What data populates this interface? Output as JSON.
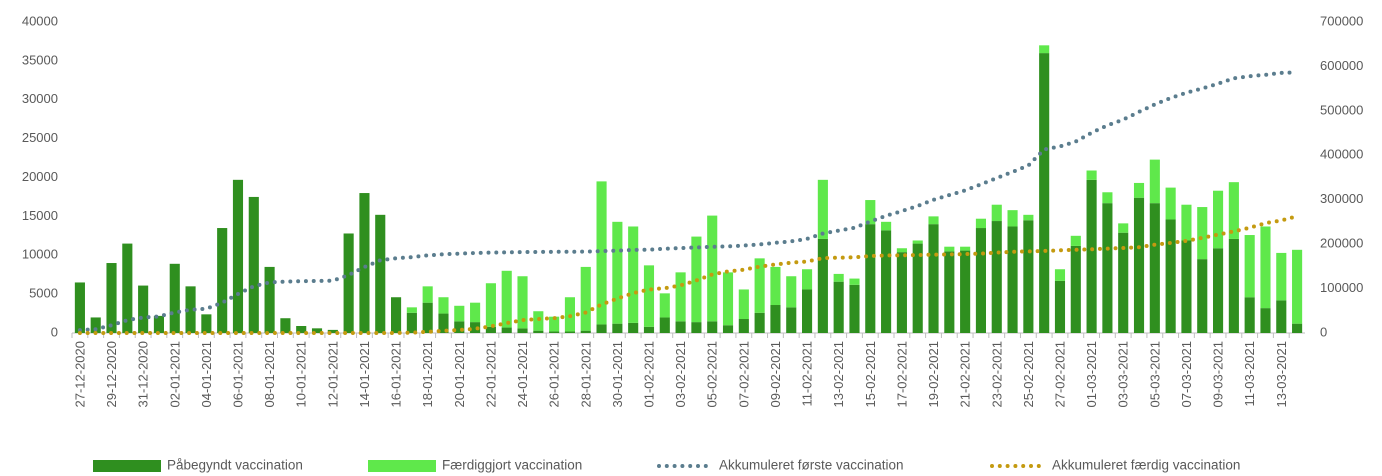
{
  "chart_data": {
    "type": "bar",
    "stacked": true,
    "categories": [
      "27-12-2020",
      null,
      "29-12-2020",
      null,
      "31-12-2020",
      null,
      "02-01-2021",
      null,
      "04-01-2021",
      null,
      "06-01-2021",
      null,
      "08-01-2021",
      null,
      "10-01-2021",
      null,
      "12-01-2021",
      null,
      "14-01-2021",
      null,
      "16-01-2021",
      null,
      "18-01-2021",
      null,
      "20-01-2021",
      null,
      "22-01-2021",
      null,
      "24-01-2021",
      null,
      "26-01-2021",
      null,
      "28-01-2021",
      null,
      "30-01-2021",
      null,
      "01-02-2021",
      null,
      "03-02-2021",
      null,
      "05-02-2021",
      null,
      "07-02-2021",
      null,
      "09-02-2021",
      null,
      "11-02-2021",
      null,
      "13-02-2021",
      null,
      "15-02-2021",
      null,
      "17-02-2021",
      null,
      "19-02-2021",
      null,
      "21-02-2021",
      null,
      "23-02-2021",
      null,
      "25-02-2021",
      null,
      "27-02-2021",
      null,
      "01-03-2021",
      null,
      "03-03-2021",
      null,
      "05-03-2021",
      null,
      "07-03-2021",
      null,
      "09-03-2021",
      null,
      "11-03-2021",
      null,
      "13-03-2021",
      null
    ],
    "series": [
      {
        "name": "Påbegyndt vaccination",
        "type": "bar",
        "color": "#2f8f1f",
        "values": [
          6500,
          2000,
          9000,
          11500,
          6100,
          2200,
          8900,
          6000,
          2400,
          13500,
          19700,
          17500,
          8500,
          1900,
          900,
          600,
          400,
          12800,
          18000,
          15200,
          4600,
          2600,
          3900,
          2500,
          1500,
          1400,
          800,
          700,
          600,
          300,
          200,
          200,
          300,
          1100,
          1200,
          1300,
          800,
          2000,
          1500,
          1400,
          1500,
          1000,
          1800,
          2600,
          3600,
          3300,
          5600,
          12100,
          6600,
          6200,
          14000,
          13200,
          10400,
          11500,
          14000,
          10500,
          10600,
          13500,
          14400,
          13700,
          14500,
          36000,
          6700,
          11200,
          19700,
          16700,
          12900,
          17400,
          16700,
          14600,
          11900,
          9500,
          10900,
          12100,
          4600,
          3200,
          4200,
          1200
        ]
      },
      {
        "name": "Færdiggjort vaccination",
        "type": "bar",
        "color": "#5fe84b",
        "values": [
          0,
          0,
          0,
          0,
          0,
          0,
          0,
          0,
          0,
          0,
          0,
          0,
          0,
          0,
          0,
          0,
          0,
          0,
          0,
          0,
          0,
          700,
          2100,
          2100,
          2000,
          2500,
          5600,
          7300,
          6700,
          2500,
          1900,
          4400,
          8200,
          18400,
          13100,
          12400,
          7900,
          3100,
          6300,
          11000,
          13600,
          6800,
          3800,
          7000,
          4900,
          4000,
          2600,
          7600,
          1000,
          800,
          3100,
          1100,
          500,
          400,
          1000,
          600,
          500,
          1200,
          2100,
          2100,
          700,
          1000,
          1500,
          1300,
          1200,
          1400,
          1200,
          1900,
          5600,
          4100,
          4600,
          6700,
          7400,
          7300,
          8000,
          10500,
          6100,
          9500
        ]
      },
      {
        "name": "Akkumuleret første vaccination",
        "type": "line",
        "axis": "y2",
        "color": "#5b7d8e",
        "values": [
          6500,
          8500,
          17500,
          29000,
          35100,
          37300,
          46200,
          52200,
          54600,
          68100,
          87800,
          105300,
          113800,
          115700,
          116600,
          117200,
          117600,
          130400,
          148400,
          163600,
          168200,
          170800,
          174700,
          177200,
          178700,
          180100,
          180900,
          181600,
          182200,
          182500,
          182700,
          182900,
          183200,
          184300,
          185500,
          186800,
          187600,
          189600,
          191100,
          192500,
          194000,
          195000,
          196800,
          199400,
          203000,
          206300,
          211900,
          224000,
          230600,
          236800,
          250800,
          264000,
          274400,
          285900,
          299900,
          310400,
          321000,
          334500,
          348900,
          362600,
          377100,
          413100,
          419800,
          431000,
          450700,
          467400,
          480300,
          497700,
          514400,
          529000,
          540900,
          550400,
          561300,
          573400,
          578000,
          581200,
          585400,
          586600
        ]
      },
      {
        "name": "Akkumuleret færdig vaccination",
        "type": "line",
        "axis": "y2",
        "color": "#c49a10",
        "values": [
          0,
          0,
          0,
          0,
          0,
          0,
          0,
          0,
          0,
          0,
          0,
          0,
          0,
          0,
          0,
          0,
          0,
          0,
          0,
          0,
          0,
          700,
          2800,
          4900,
          6900,
          9400,
          15000,
          22300,
          29000,
          31500,
          33400,
          37800,
          46000,
          64400,
          77500,
          89900,
          97800,
          100900,
          107200,
          118200,
          131800,
          138600,
          142400,
          149400,
          154300,
          158300,
          160900,
          168500,
          169500,
          170300,
          173400,
          174500,
          175000,
          175400,
          176400,
          177000,
          177500,
          178700,
          180800,
          182900,
          183600,
          184600,
          186100,
          187400,
          188600,
          190000,
          191200,
          193100,
          198700,
          202800,
          207400,
          214100,
          221500,
          228800,
          236800,
          247300,
          253400,
          262900
        ]
      }
    ],
    "ylim": [
      0,
      40000
    ],
    "yticks": [
      0,
      5000,
      10000,
      15000,
      20000,
      25000,
      30000,
      35000,
      40000
    ],
    "y2lim": [
      0,
      700000
    ],
    "y2ticks": [
      0,
      100000,
      200000,
      300000,
      400000,
      500000,
      600000,
      700000
    ],
    "grid": false,
    "legend": "bottom"
  }
}
